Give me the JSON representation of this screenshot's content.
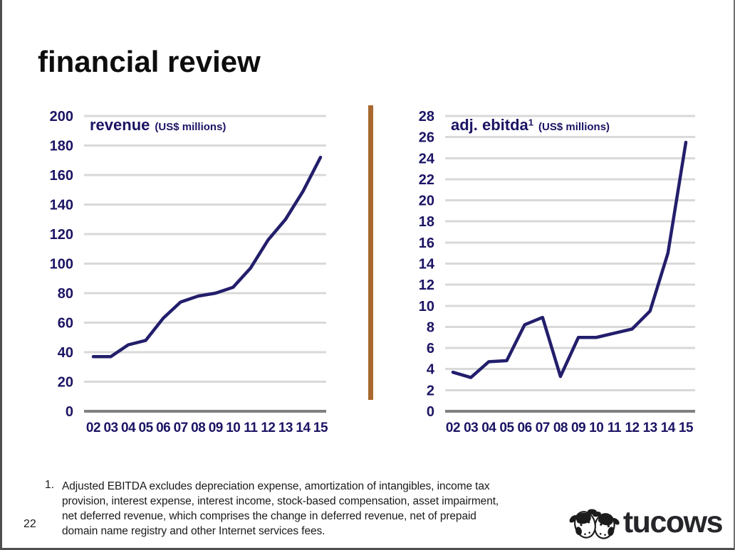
{
  "slide": {
    "title": "financial review",
    "page_number": "22"
  },
  "footnote": {
    "marker": "1.",
    "lines": [
      "Adjusted EBITDA excludes depreciation expense, amortization of intangibles, income tax",
      "provision, interest expense, interest income, stock-based compensation, asset impairment,",
      "net deferred revenue, which comprises the change in deferred revenue, net of prepaid",
      "domain name registry and other Internet services fees."
    ]
  },
  "logo": {
    "text": "tucows",
    "icon": "two-cow-heads-icon"
  },
  "colors": {
    "line": "#231e6b",
    "tick_text": "#1b1464",
    "grid": "#d9d9d9",
    "axis": "#808080",
    "divider": "#a9692e",
    "title_text": "#0d0d0d"
  },
  "chart_data": [
    {
      "type": "line",
      "title": "revenue",
      "title_sup": "",
      "units_label": "(US$ millions)",
      "categories": [
        "02",
        "03",
        "04",
        "05",
        "06",
        "07",
        "08",
        "09",
        "10",
        "11",
        "12",
        "13",
        "14",
        "15"
      ],
      "values": [
        37,
        37,
        45,
        48,
        63,
        74,
        78,
        80,
        84,
        97,
        116,
        130,
        149,
        172
      ],
      "ylim": [
        0,
        200
      ],
      "ystep": 20,
      "grid": true,
      "legend": "none"
    },
    {
      "type": "line",
      "title": "adj. ebitda",
      "title_sup": "1",
      "units_label": "(US$ millions)",
      "categories": [
        "02",
        "03",
        "04",
        "05",
        "06",
        "07",
        "08",
        "09",
        "10",
        "11",
        "12",
        "13",
        "14",
        "15"
      ],
      "values": [
        3.7,
        3.2,
        4.7,
        4.8,
        8.2,
        8.9,
        3.3,
        7.0,
        7.0,
        7.4,
        7.8,
        9.5,
        15.0,
        25.5
      ],
      "ylim": [
        0,
        28
      ],
      "ystep": 2,
      "grid": true,
      "legend": "none"
    }
  ]
}
